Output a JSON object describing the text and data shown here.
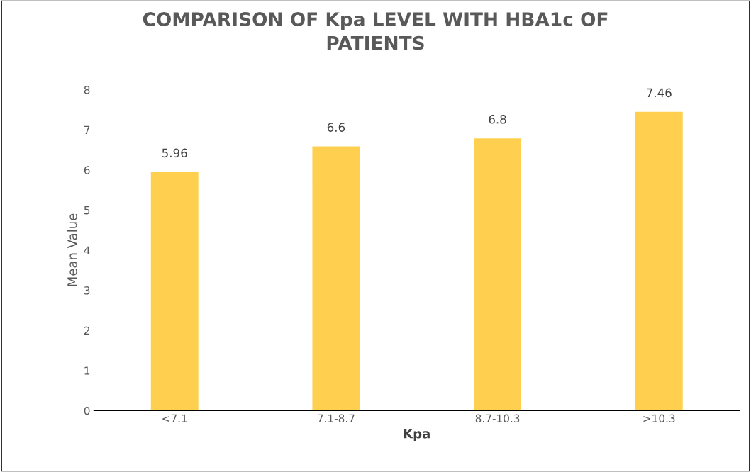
{
  "chart_data": {
    "type": "bar",
    "title": "COMPARISON OF Kpa LEVEL WITH HBA1c OF\nPATIENTS",
    "xlabel": "Kpa",
    "ylabel": "Mean Value",
    "categories": [
      "<7.1",
      "7.1-8.7",
      "8.7-10.3",
      ">10.3"
    ],
    "values": [
      5.96,
      6.6,
      6.8,
      7.46
    ],
    "color": "#ffd04f",
    "ylim": [
      0,
      8
    ],
    "yticks": [
      0,
      1,
      2,
      3,
      4,
      5,
      6,
      7,
      8
    ],
    "grid": false,
    "data_labels": true
  }
}
